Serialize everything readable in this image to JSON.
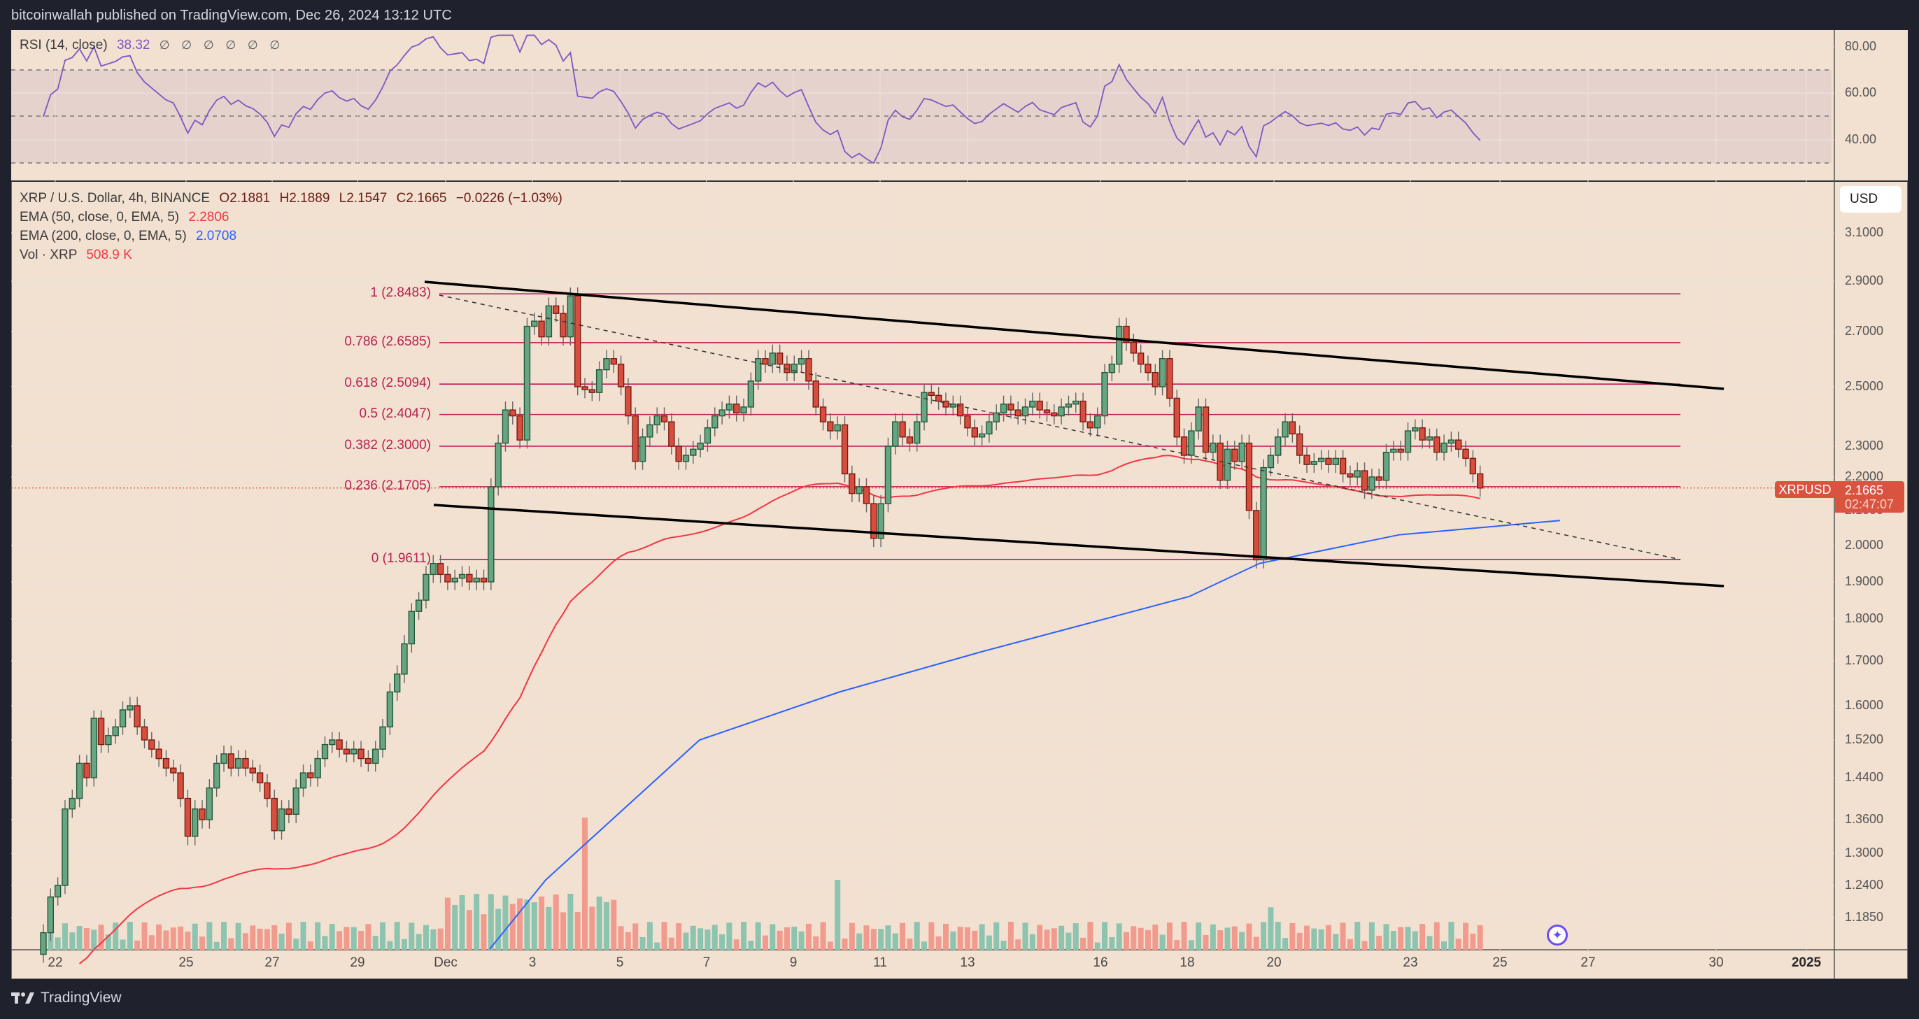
{
  "caption": "bitcoinwallah published on TradingView.com, Dec 26, 2024 13:12 UTC",
  "footer": {
    "brand": "TradingView"
  },
  "rsi": {
    "label": "RSI (14, close)",
    "value": "38.32",
    "extra": "∅ ∅ ∅ ∅ ∅ ∅",
    "axis": [
      "80.00",
      "60.00",
      "40.00"
    ],
    "color": "#7e57c2"
  },
  "main": {
    "symbol_line": "XRP / U.S. Dollar, 4h, BINANCE",
    "open": "O2.1881",
    "high": "H2.1889",
    "low": "L2.1547",
    "close": "C2.1665",
    "change": "−0.0226 (−1.03%)",
    "ema50_label": "EMA (50, close, 0, EMA, 5)",
    "ema50_value": "2.2806",
    "ema50_color": "#f23645",
    "ema200_label": "EMA (200, close, 0, EMA, 5)",
    "ema200_value": "2.0708",
    "ema200_color": "#2962ff",
    "vol_label": "Vol · XRP",
    "vol_value": "508.9 K",
    "currency_button": "USD",
    "price_tag": {
      "symbol": "XRPUSD",
      "price": "2.1665",
      "countdown": "02:47:07"
    }
  },
  "price_axis": [
    "3.1000",
    "2.9000",
    "2.7000",
    "2.5000",
    "2.3000",
    "2.2000",
    "2.1000",
    "2.0000",
    "1.9000",
    "1.8000",
    "1.7000",
    "1.6000",
    "1.5200",
    "1.4400",
    "1.3600",
    "1.3000",
    "1.2400",
    "1.1850"
  ],
  "time_axis": [
    "22",
    "25",
    "27",
    "29",
    "Dec",
    "3",
    "5",
    "7",
    "9",
    "11",
    "13",
    "16",
    "18",
    "20",
    "23",
    "25",
    "27",
    "30",
    "2025"
  ],
  "fib_levels": [
    {
      "label": "1 (2.8483)",
      "price": 2.8483
    },
    {
      "label": "0.786 (2.6585)",
      "price": 2.6585
    },
    {
      "label": "0.618 (2.5094)",
      "price": 2.5094
    },
    {
      "label": "0.5 (2.4047)",
      "price": 2.4047
    },
    {
      "label": "0.382 (2.3000)",
      "price": 2.3
    },
    {
      "label": "0.236 (2.1705)",
      "price": 2.1705
    },
    {
      "label": "0 (1.9611)",
      "price": 1.9611
    }
  ],
  "chart_data": {
    "type": "candlestick",
    "title": "XRP / U.S. Dollar, 4h, BINANCE",
    "timeframe": "4h",
    "x_range": [
      "Nov 21, 2024",
      "Dec 26, 2024"
    ],
    "ylim": [
      1.15,
      3.15
    ],
    "y_scale": "log",
    "last": {
      "open": 2.1881,
      "high": 2.1889,
      "low": 2.1547,
      "close": 2.1665,
      "change": -0.0226,
      "change_pct": -1.03
    },
    "indicators": {
      "ema50": 2.2806,
      "ema200": 2.0708,
      "rsi14": 38.32,
      "volume": "508.9K"
    },
    "fibonacci": [
      {
        "ratio": 1,
        "price": 2.8483
      },
      {
        "ratio": 0.786,
        "price": 2.6585
      },
      {
        "ratio": 0.618,
        "price": 2.5094
      },
      {
        "ratio": 0.5,
        "price": 2.4047
      },
      {
        "ratio": 0.382,
        "price": 2.3
      },
      {
        "ratio": 0.236,
        "price": 2.1705
      },
      {
        "ratio": 0,
        "price": 1.9611
      }
    ],
    "channel": {
      "upper": [
        {
          "x": "Dec 2",
          "price": 2.89
        },
        {
          "x": "Dec 28",
          "price": 2.49
        }
      ],
      "lower": [
        {
          "x": "Dec 2",
          "price": 2.12
        },
        {
          "x": "Dec 28",
          "price": 1.89
        }
      ]
    },
    "closes": [
      1.16,
      1.22,
      1.24,
      1.38,
      1.4,
      1.47,
      1.44,
      1.57,
      1.51,
      1.53,
      1.55,
      1.59,
      1.6,
      1.55,
      1.52,
      1.5,
      1.48,
      1.46,
      1.45,
      1.4,
      1.33,
      1.38,
      1.36,
      1.42,
      1.47,
      1.49,
      1.46,
      1.48,
      1.46,
      1.45,
      1.43,
      1.4,
      1.34,
      1.38,
      1.37,
      1.42,
      1.45,
      1.44,
      1.48,
      1.51,
      1.52,
      1.5,
      1.49,
      1.5,
      1.48,
      1.47,
      1.5,
      1.55,
      1.63,
      1.67,
      1.74,
      1.82,
      1.85,
      1.92,
      1.95,
      1.92,
      1.9,
      1.91,
      1.92,
      1.9,
      1.91,
      1.9,
      2.17,
      2.31,
      2.42,
      2.4,
      2.32,
      2.72,
      2.74,
      2.68,
      2.8,
      2.77,
      2.68,
      2.84,
      2.5,
      2.49,
      2.48,
      2.56,
      2.6,
      2.58,
      2.5,
      2.4,
      2.25,
      2.33,
      2.37,
      2.4,
      2.38,
      2.3,
      2.25,
      2.27,
      2.29,
      2.31,
      2.36,
      2.4,
      2.42,
      2.44,
      2.41,
      2.43,
      2.52,
      2.6,
      2.58,
      2.62,
      2.58,
      2.55,
      2.58,
      2.6,
      2.52,
      2.43,
      2.38,
      2.35,
      2.37,
      2.21,
      2.15,
      2.17,
      2.12,
      2.02,
      2.12,
      2.3,
      2.38,
      2.33,
      2.31,
      2.38,
      2.48,
      2.47,
      2.45,
      2.43,
      2.44,
      2.4,
      2.36,
      2.33,
      2.34,
      2.38,
      2.41,
      2.44,
      2.42,
      2.4,
      2.43,
      2.45,
      2.42,
      2.41,
      2.4,
      2.43,
      2.44,
      2.45,
      2.38,
      2.36,
      2.4,
      2.55,
      2.58,
      2.72,
      2.66,
      2.62,
      2.58,
      2.55,
      2.5,
      2.6,
      2.46,
      2.33,
      2.27,
      2.35,
      2.43,
      2.28,
      2.31,
      2.19,
      2.29,
      2.25,
      2.31,
      2.1,
      1.96,
      2.23,
      2.27,
      2.33,
      2.38,
      2.34,
      2.27,
      2.24,
      2.25,
      2.26,
      2.24,
      2.26,
      2.21,
      2.2,
      2.22,
      2.16,
      2.2,
      2.19,
      2.28,
      2.29,
      2.28,
      2.35,
      2.36,
      2.32,
      2.33,
      2.28,
      2.31,
      2.32,
      2.29,
      2.26,
      2.21,
      2.1665
    ]
  }
}
